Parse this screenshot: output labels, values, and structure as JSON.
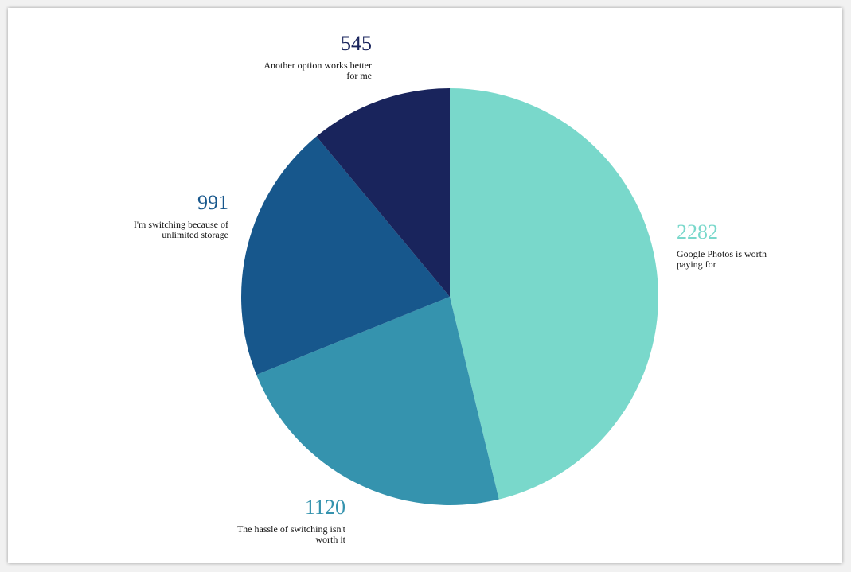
{
  "chart_data": {
    "type": "pie",
    "categories": [
      "Google Photos is worth paying for",
      "The hassle of switching isn't worth it",
      "I'm switching because of unlimited storage",
      "Another option works better for me"
    ],
    "values": [
      2282,
      1120,
      991,
      545
    ],
    "colors": [
      "#79d8cb",
      "#3593ae",
      "#17578c",
      "#19245c"
    ],
    "labels": [
      {
        "value": "2282",
        "lines": [
          "Google Photos is worth",
          "paying for"
        ],
        "anchor": "start"
      },
      {
        "value": "1120",
        "lines": [
          "The hassle of switching isn't",
          "worth it"
        ],
        "anchor": "end"
      },
      {
        "value": "991",
        "lines": [
          "I'm switching because of",
          "unlimited storage"
        ],
        "anchor": "end"
      },
      {
        "value": "545",
        "lines": [
          "Another option works better",
          "for me"
        ],
        "anchor": "end"
      }
    ],
    "start_angle": "12 o'clock",
    "direction": "clockwise",
    "legend": "none",
    "title": ""
  }
}
